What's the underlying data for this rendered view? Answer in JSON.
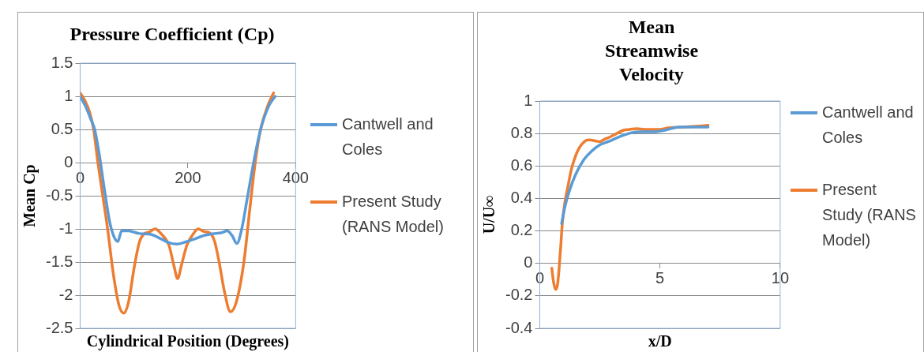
{
  "chart_data": [
    {
      "type": "line",
      "title": "Pressure Coefficient (Cp)",
      "xlabel": "Cylindrical Position (Degrees)",
      "ylabel": "Mean Cp",
      "xlim": [
        0,
        400
      ],
      "xticks": [
        0,
        200,
        400
      ],
      "ylim": [
        -2.5,
        1.5
      ],
      "yticks": [
        -2.5,
        -2,
        -1.5,
        -1,
        -0.5,
        0,
        0.5,
        1,
        1.5
      ],
      "grid": "y",
      "legend": "right",
      "marker": "none",
      "series": [
        {
          "name": "Cantwell and Coles",
          "color": "#5b9bd5",
          "x": [
            0,
            10,
            20,
            27,
            35,
            45,
            55,
            63,
            70,
            77,
            90,
            110,
            130,
            150,
            165,
            180,
            195,
            210,
            230,
            250,
            262,
            273,
            282,
            291,
            300,
            310,
            322,
            335,
            350,
            362
          ],
          "values": [
            1.0,
            0.85,
            0.65,
            0.5,
            0.15,
            -0.4,
            -0.9,
            -1.12,
            -1.19,
            -1.03,
            -1.03,
            -1.07,
            -1.08,
            -1.15,
            -1.21,
            -1.23,
            -1.2,
            -1.16,
            -1.1,
            -1.07,
            -1.06,
            -1.03,
            -1.1,
            -1.22,
            -1.0,
            -0.55,
            0.0,
            0.5,
            0.85,
            1.0
          ]
        },
        {
          "name": "Present Study (RANS Model)",
          "color": "#ed7d31",
          "x": [
            0,
            8,
            18,
            25,
            33,
            42,
            51,
            62,
            72,
            81,
            90,
            100,
            110,
            118,
            128,
            139,
            150,
            165,
            174,
            181,
            188,
            198,
            208,
            219,
            230,
            242,
            250,
            258,
            268,
            279,
            290,
            304,
            315,
            325,
            335,
            348,
            359
          ],
          "values": [
            1.05,
            0.95,
            0.75,
            0.5,
            0.0,
            -0.5,
            -1.0,
            -1.7,
            -2.15,
            -2.27,
            -2.1,
            -1.6,
            -1.2,
            -1.08,
            -1.05,
            -1.0,
            -1.07,
            -1.25,
            -1.55,
            -1.75,
            -1.55,
            -1.25,
            -1.1,
            -1.0,
            -1.04,
            -1.07,
            -1.2,
            -1.5,
            -1.95,
            -2.25,
            -2.1,
            -1.5,
            -0.7,
            0.0,
            0.5,
            0.85,
            1.05
          ]
        }
      ]
    },
    {
      "type": "line",
      "title": "Mean Streamwise Velocity",
      "xlabel": "x/D",
      "ylabel": "U/U∞",
      "xlim": [
        0,
        10
      ],
      "xticks": [
        0,
        5,
        10
      ],
      "ylim": [
        -0.4,
        1
      ],
      "yticks": [
        -0.4,
        -0.2,
        0,
        0.2,
        0.4,
        0.6,
        0.8,
        1
      ],
      "grid": "y",
      "legend": "right",
      "marker": "none",
      "series": [
        {
          "name": "Cantwell and Coles",
          "color": "#5b9bd5",
          "x": [
            0.91,
            1.05,
            1.24,
            1.5,
            1.84,
            2.15,
            2.5,
            2.85,
            3.16,
            3.5,
            3.82,
            4.2,
            4.7,
            5.2,
            5.8,
            6.4,
            7.0
          ],
          "values": [
            0.245,
            0.35,
            0.45,
            0.55,
            0.64,
            0.69,
            0.73,
            0.75,
            0.77,
            0.79,
            0.805,
            0.81,
            0.81,
            0.82,
            0.84,
            0.84,
            0.84
          ]
        },
        {
          "name": "Present Study (RANS Model)",
          "color": "#ed7d31",
          "x": [
            0.5,
            0.58,
            0.66,
            0.74,
            0.8,
            0.87,
            0.94,
            1.05,
            1.18,
            1.3,
            1.46,
            1.6,
            1.73,
            1.9,
            2.06,
            2.3,
            2.5,
            2.7,
            2.94,
            3.2,
            3.49,
            3.75,
            4.04,
            4.35,
            4.7,
            5.0,
            5.35,
            6.0,
            6.5,
            7.0
          ],
          "values": [
            -0.03,
            -0.12,
            -0.16,
            -0.13,
            -0.04,
            0.1,
            0.25,
            0.38,
            0.48,
            0.57,
            0.65,
            0.7,
            0.73,
            0.755,
            0.76,
            0.755,
            0.75,
            0.765,
            0.78,
            0.8,
            0.82,
            0.825,
            0.83,
            0.825,
            0.825,
            0.825,
            0.835,
            0.84,
            0.845,
            0.85
          ]
        }
      ]
    }
  ]
}
